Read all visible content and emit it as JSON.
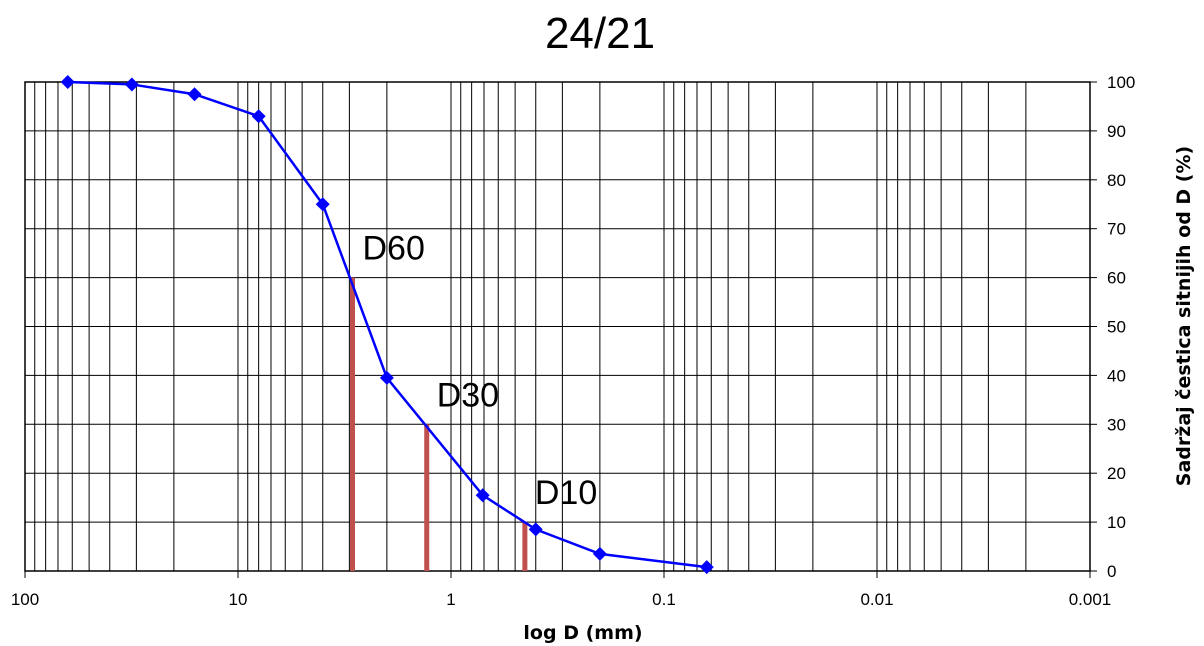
{
  "chart_data": {
    "type": "line",
    "title": "24/21",
    "xlabel": "log D (mm)",
    "ylabel": "Sadržaj čestica sitnijih od D (%)",
    "x_scale": "log",
    "x_reversed": true,
    "xlim": [
      100,
      0.001
    ],
    "ylim": [
      0,
      100
    ],
    "x_ticks": [
      100,
      10,
      1,
      0.1,
      0.01,
      0.001
    ],
    "x_tick_labels": [
      "100",
      "10",
      "1",
      "0.1",
      "0.01",
      "0.001"
    ],
    "y_ticks": [
      0,
      10,
      20,
      30,
      40,
      50,
      60,
      70,
      80,
      90,
      100
    ],
    "y_tick_labels": [
      "0",
      "10",
      "20",
      "30",
      "40",
      "50",
      "60",
      "70",
      "80",
      "90",
      "100"
    ],
    "y_axis_position": "right",
    "grid": true,
    "series": [
      {
        "color": "#0000ff",
        "marker": "diamond",
        "x": [
          63,
          31.5,
          16,
          8,
          4,
          2,
          0.71,
          0.4,
          0.2,
          0.063
        ],
        "y": [
          100,
          99.5,
          97.5,
          93,
          75,
          39.5,
          15.5,
          8.5,
          3.5,
          0.8
        ]
      }
    ],
    "characteristic_diameters": [
      {
        "label": "D60",
        "x": 2.9,
        "y": 60
      },
      {
        "label": "D30",
        "x": 1.3,
        "y": 30
      },
      {
        "label": "D10",
        "x": 0.45,
        "y": 10
      }
    ],
    "marker_line_color": "#c0504d"
  }
}
